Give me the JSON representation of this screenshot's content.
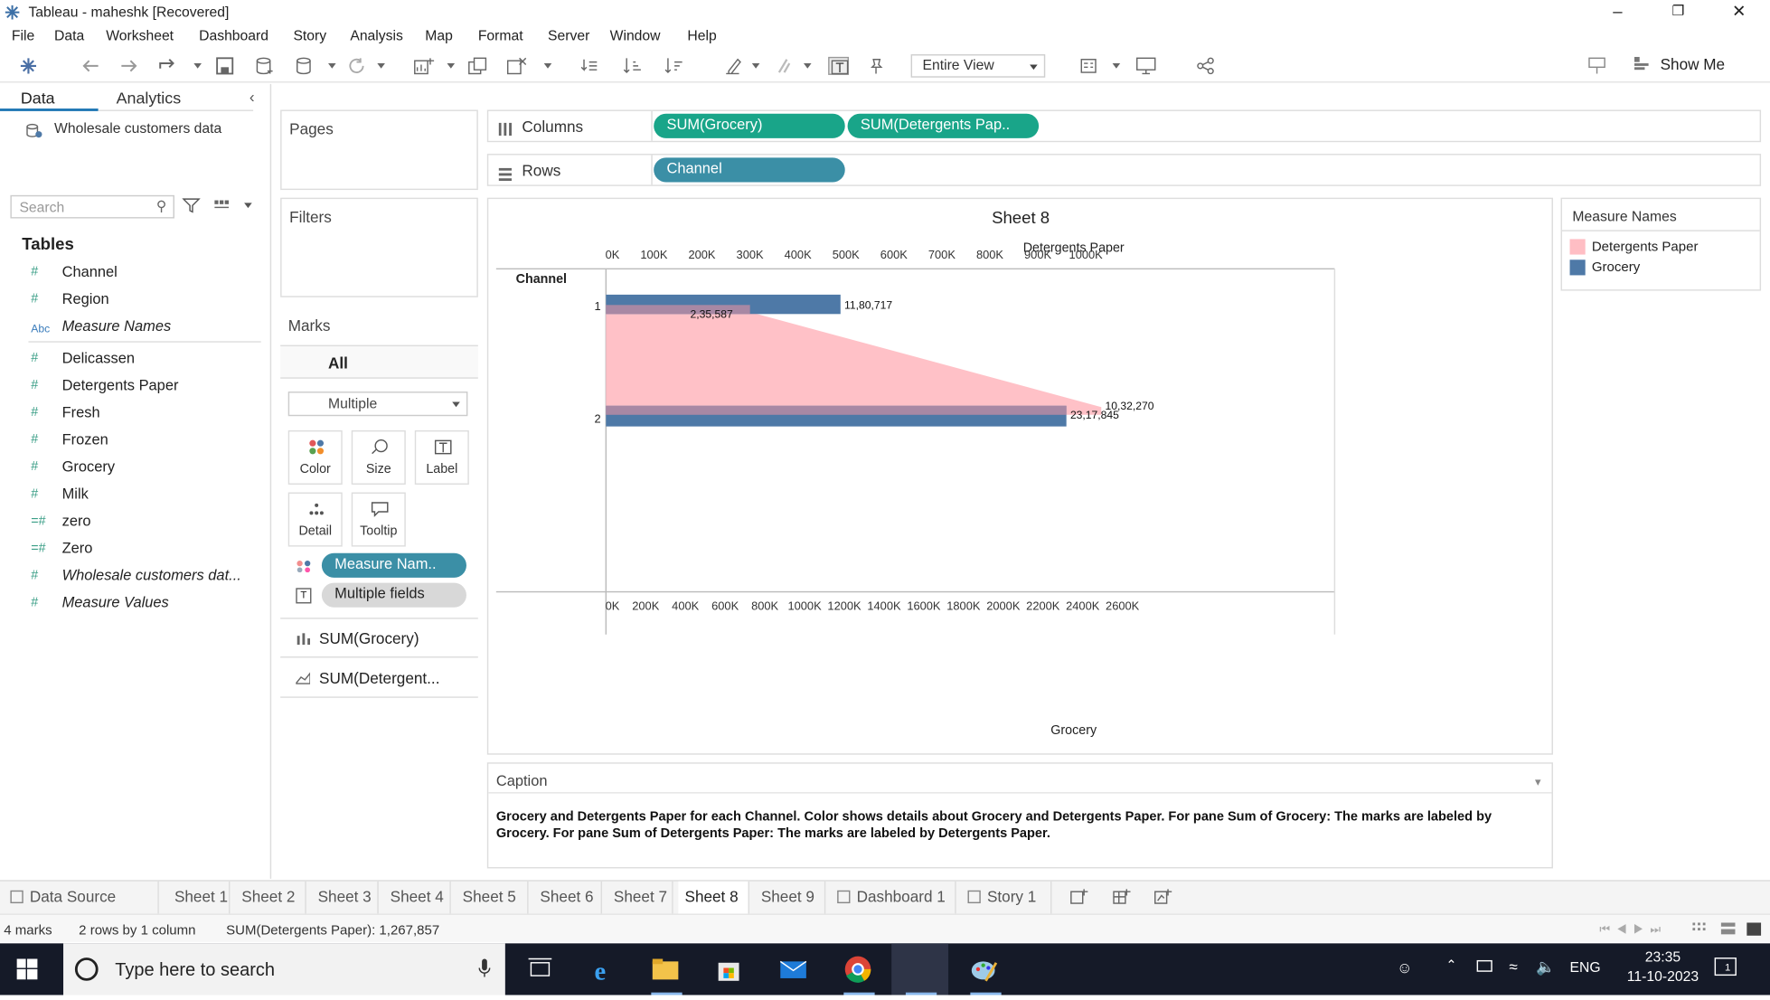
{
  "window": {
    "title": "Tableau - maheshk [Recovered]"
  },
  "menu": [
    "File",
    "Data",
    "Worksheet",
    "Dashboard",
    "Story",
    "Analysis",
    "Map",
    "Format",
    "Server",
    "Window",
    "Help"
  ],
  "toolbar": {
    "view_select": "Entire View",
    "show_me": "Show Me"
  },
  "data_pane": {
    "tab_data": "Data",
    "tab_analytics": "Analytics",
    "datasource": "Wholesale customers data",
    "search_placeholder": "Search",
    "tables_heading": "Tables",
    "fields": [
      {
        "name": "Channel",
        "type": "#"
      },
      {
        "name": "Region",
        "type": "#"
      },
      {
        "name": "Measure Names",
        "type": "Abc"
      },
      {
        "name": "Delicassen",
        "type": "#"
      },
      {
        "name": "Detergents Paper",
        "type": "#"
      },
      {
        "name": "Fresh",
        "type": "#"
      },
      {
        "name": "Frozen",
        "type": "#"
      },
      {
        "name": "Grocery",
        "type": "#"
      },
      {
        "name": "Milk",
        "type": "#"
      },
      {
        "name": "zero",
        "type": "=#"
      },
      {
        "name": "Zero",
        "type": "=#"
      },
      {
        "name": "Wholesale customers dat...",
        "type": "#"
      },
      {
        "name": "Measure Values",
        "type": "#"
      }
    ]
  },
  "cards": {
    "pages": "Pages",
    "filters": "Filters",
    "marks": "Marks",
    "marks_all": "All",
    "mark_type": "Multiple",
    "buttons": [
      "Color",
      "Size",
      "Label",
      "Detail",
      "Tooltip"
    ],
    "pill_color": "Measure Nam..",
    "pill_label": "Multiple fields",
    "sum_grocery": "SUM(Grocery)",
    "sum_detergents": "SUM(Detergent..."
  },
  "shelves": {
    "columns_label": "Columns",
    "rows_label": "Rows",
    "columns_pills": [
      "SUM(Grocery)",
      "SUM(Detergents Pap.."
    ],
    "rows_pills": [
      "Channel"
    ]
  },
  "legend": {
    "title": "Measure Names",
    "items": [
      {
        "label": "Detergents Paper",
        "color": "#ffbec4"
      },
      {
        "label": "Grocery",
        "color": "#4e79a7"
      }
    ]
  },
  "chart_data": {
    "type": "bar",
    "title": "Sheet 8",
    "row_header": "Channel",
    "categories": [
      "1",
      "2"
    ],
    "series": [
      {
        "name": "Grocery",
        "values": [
          1180717,
          2317845
        ],
        "labels": [
          "11,80,717",
          "23,17,845"
        ],
        "color": "#4e79a7"
      },
      {
        "name": "Detergents Paper",
        "values": [
          235587,
          1032270
        ],
        "labels": [
          "2,35,587",
          "10,32,270"
        ],
        "color": "#ffbec4"
      }
    ],
    "top_axis": {
      "label": "Detergents Paper",
      "ticks": [
        "0K",
        "100K",
        "200K",
        "300K",
        "400K",
        "500K",
        "600K",
        "700K",
        "800K",
        "900K",
        "1000K"
      ],
      "range": [
        0,
        1100000
      ]
    },
    "bottom_axis": {
      "label": "Grocery",
      "ticks": [
        "0K",
        "200K",
        "400K",
        "600K",
        "800K",
        "1000K",
        "1200K",
        "1400K",
        "1600K",
        "1800K",
        "2000K",
        "2200K",
        "2400K",
        "2600K"
      ],
      "range": [
        0,
        2700000
      ]
    }
  },
  "caption": {
    "title": "Caption",
    "text": "Grocery and Detergents Paper for each Channel.  Color shows details about Grocery and Detergents Paper.  For pane Sum of Grocery:  The marks are labeled by Grocery.  For pane Sum of Detergents Paper:  The marks are labeled by Detergents Paper."
  },
  "sheet_tabs": [
    "Data Source",
    "Sheet 1",
    "Sheet 2",
    "Sheet 3",
    "Sheet 4",
    "Sheet 5",
    "Sheet 6",
    "Sheet 7",
    "Sheet 8",
    "Sheet 9",
    "Dashboard 1",
    "Story 1"
  ],
  "active_sheet": "Sheet 8",
  "status": {
    "marks": "4 marks",
    "rows_cols": "2 rows by 1 column",
    "sum": "SUM(Detergents Paper): 1,267,857"
  },
  "taskbar": {
    "search_placeholder": "Type here to search",
    "lang": "ENG",
    "time": "23:35",
    "date": "11-10-2023",
    "notif_count": "1"
  }
}
